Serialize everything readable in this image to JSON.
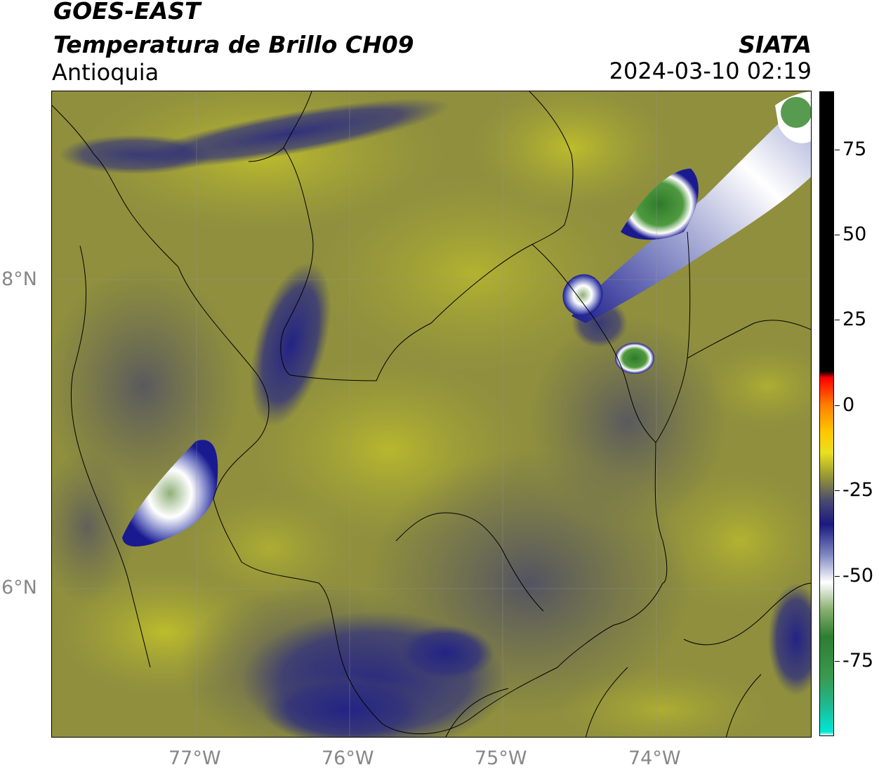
{
  "header": {
    "satellite": "GOES-EAST",
    "product": "Temperatura de Brillo CH09",
    "region": "Antioquia",
    "institution": "SIATA",
    "datetime": "2024-03-10 02:19"
  },
  "map": {
    "lon_ticks": [
      "77°W",
      "76°W",
      "75°W",
      "74°W"
    ],
    "lat_ticks": [
      "8°N",
      "6°N"
    ]
  },
  "colorbar": {
    "tick_labels": [
      "75",
      "50",
      "25",
      "0",
      "-25",
      "-50",
      "-75"
    ],
    "tick_values": [
      75,
      50,
      25,
      0,
      -25,
      -50,
      -75
    ],
    "min": -97,
    "max": 92,
    "stops": [
      {
        "value": -97,
        "color": "#ffffff"
      },
      {
        "value": -96,
        "color": "#00e8d8"
      },
      {
        "value": -88,
        "color": "#20b890"
      },
      {
        "value": -80,
        "color": "#3a9a50"
      },
      {
        "value": -68,
        "color": "#2e7d32"
      },
      {
        "value": -60,
        "color": "#88b070"
      },
      {
        "value": -52,
        "color": "#ffffff"
      },
      {
        "value": -44,
        "color": "#8088c0"
      },
      {
        "value": -35,
        "color": "#1a1a80"
      },
      {
        "value": -28,
        "color": "#4a4a70"
      },
      {
        "value": -20,
        "color": "#a0a030"
      },
      {
        "value": -14,
        "color": "#e8e020"
      },
      {
        "value": -8,
        "color": "#ffc800"
      },
      {
        "value": 0,
        "color": "#ff8000"
      },
      {
        "value": 8,
        "color": "#ff0000"
      },
      {
        "value": 10,
        "color": "#000000"
      },
      {
        "value": 92,
        "color": "#000000"
      }
    ]
  }
}
